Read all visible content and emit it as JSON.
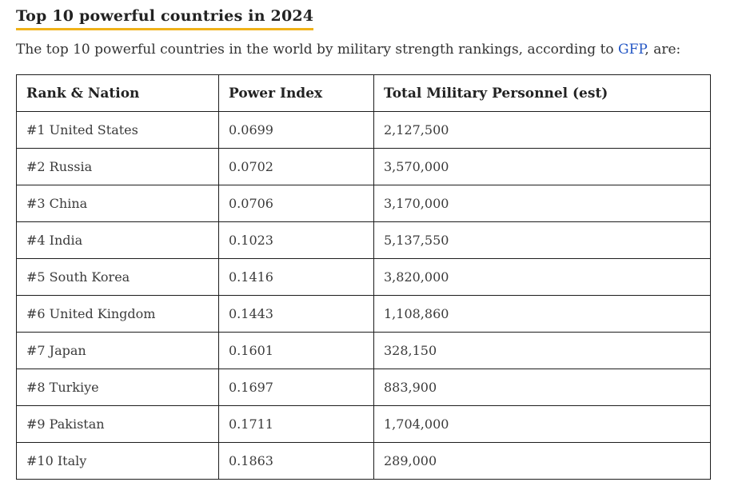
{
  "page": {
    "title": "Top 10 powerful countries in 2024",
    "intro_before_link": "The top 10 powerful countries in the world by military strength rankings, according to ",
    "intro_link": "GFP",
    "intro_after_link": ", are:"
  },
  "colors": {
    "title_underline": "#f0b219",
    "link": "#2457c5",
    "body_text": "#333333",
    "table_border": "#1d1d1d"
  },
  "table": {
    "headers": [
      "Rank & Nation",
      "Power Index",
      "Total Military Personnel (est)"
    ],
    "rows": [
      [
        "#1 United States",
        "0.0699",
        "2,127,500"
      ],
      [
        "#2 Russia",
        "0.0702",
        "3,570,000"
      ],
      [
        "#3 China",
        "0.0706",
        "3,170,000"
      ],
      [
        "#4 India",
        "0.1023",
        "5,137,550"
      ],
      [
        "#5 South Korea",
        "0.1416",
        "3,820,000"
      ],
      [
        "#6 United Kingdom",
        "0.1443",
        "1,108,860"
      ],
      [
        "#7 Japan",
        "0.1601",
        "328,150"
      ],
      [
        "#8 Turkiye",
        "0.1697",
        "883,900"
      ],
      [
        "#9 Pakistan",
        "0.1711",
        "1,704,000"
      ],
      [
        "#10 Italy",
        "0.1863",
        "289,000"
      ]
    ]
  },
  "chart_data": {
    "type": "table",
    "title": "Top 10 powerful countries in 2024",
    "columns": [
      "Rank & Nation",
      "Power Index",
      "Total Military Personnel (est)"
    ],
    "rows": [
      [
        "#1 United States",
        0.0699,
        2127500
      ],
      [
        "#2 Russia",
        0.0702,
        3570000
      ],
      [
        "#3 China",
        0.0706,
        3170000
      ],
      [
        "#4 India",
        0.1023,
        5137550
      ],
      [
        "#5 South Korea",
        0.1416,
        3820000
      ],
      [
        "#6 United Kingdom",
        0.1443,
        1108860
      ],
      [
        "#7 Japan",
        0.1601,
        328150
      ],
      [
        "#8 Turkiye",
        0.1697,
        883900
      ],
      [
        "#9 Pakistan",
        0.1711,
        1704000
      ],
      [
        "#10 Italy",
        0.1863,
        289000
      ]
    ]
  }
}
